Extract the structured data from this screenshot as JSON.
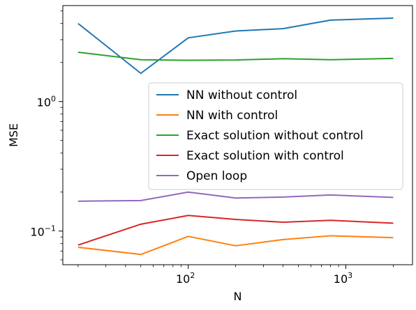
{
  "chart_data": {
    "type": "line",
    "xlabel": "N",
    "ylabel": "MSE",
    "xscale": "log",
    "yscale": "log",
    "xlim": [
      16,
      2650
    ],
    "ylim": [
      0.055,
      5.5
    ],
    "x": [
      20,
      50,
      100,
      200,
      400,
      800,
      2000
    ],
    "major_x_ticks": [
      {
        "value": 100,
        "base": "10",
        "exp": "2"
      },
      {
        "value": 1000,
        "base": "10",
        "exp": "3"
      }
    ],
    "major_y_ticks": [
      {
        "value": 0.1,
        "base": "10",
        "exp": "−1"
      },
      {
        "value": 1,
        "base": "10",
        "exp": "0"
      }
    ],
    "grid": false,
    "legend_position": "center-right",
    "series": [
      {
        "name": "NN without control",
        "color": "#1f77b4",
        "values": [
          4.0,
          1.65,
          3.1,
          3.5,
          3.65,
          4.25,
          4.4
        ]
      },
      {
        "name": "NN with control",
        "color": "#ff7f0e",
        "values": [
          0.075,
          0.066,
          0.091,
          0.077,
          0.086,
          0.092,
          0.089
        ]
      },
      {
        "name": "Exact solution without control",
        "color": "#2ca02c",
        "values": [
          2.4,
          2.1,
          2.08,
          2.09,
          2.14,
          2.1,
          2.15
        ]
      },
      {
        "name": "Exact solution with control",
        "color": "#d62728",
        "values": [
          0.078,
          0.113,
          0.132,
          0.123,
          0.117,
          0.121,
          0.115
        ]
      },
      {
        "name": "Open loop",
        "color": "#9467bd",
        "values": [
          0.17,
          0.172,
          0.2,
          0.18,
          0.183,
          0.19,
          0.182
        ]
      }
    ]
  }
}
